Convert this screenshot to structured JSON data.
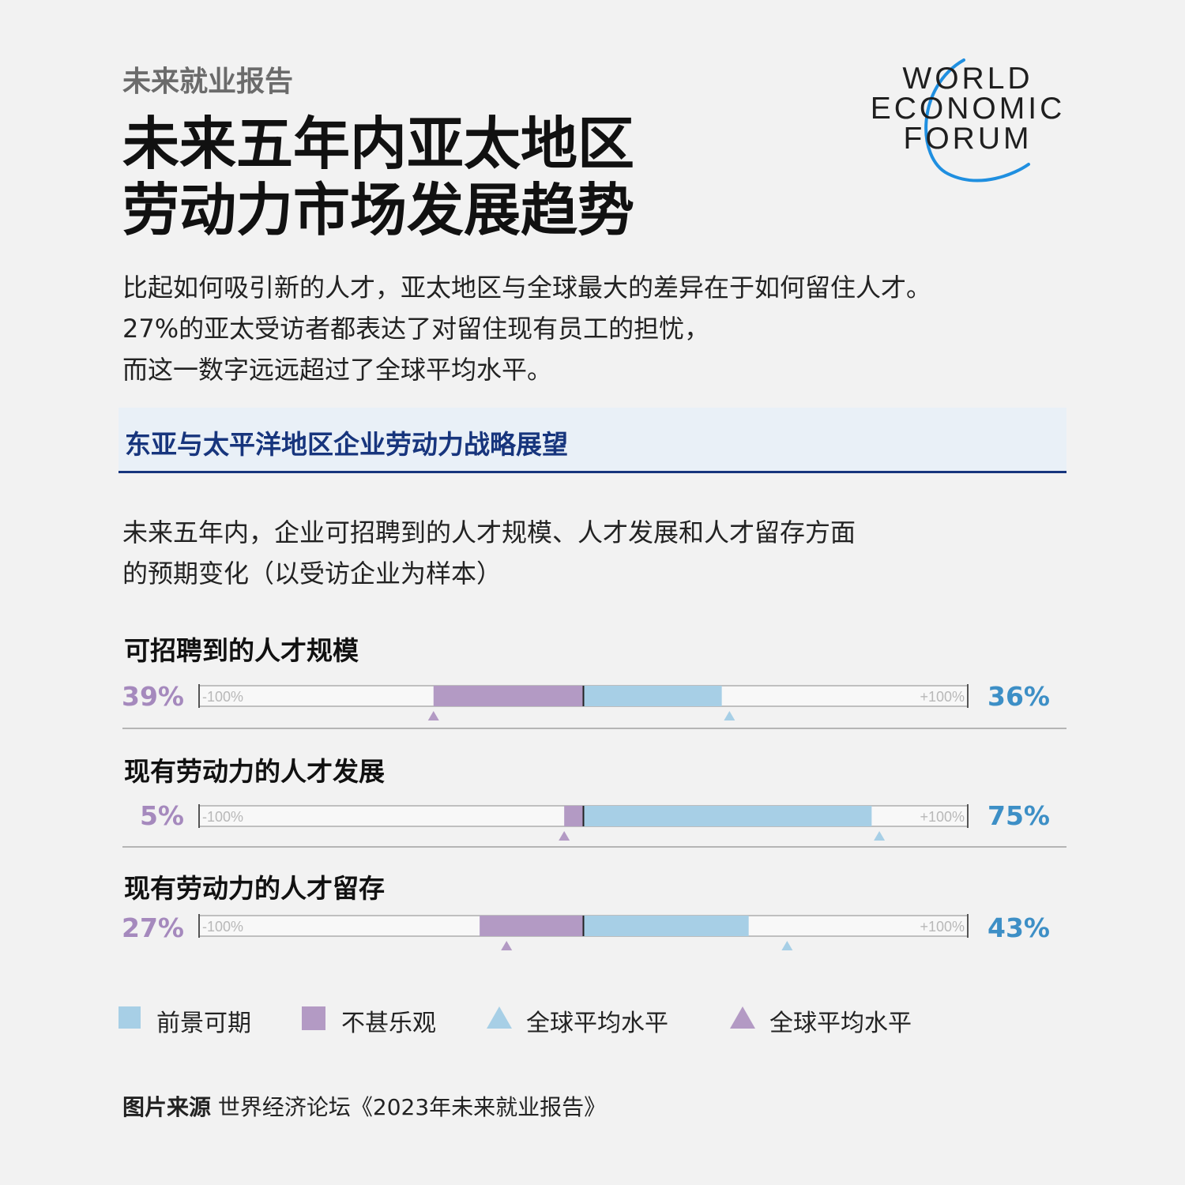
{
  "header": {
    "kicker": "未来就业报告",
    "title_lines": [
      "未来五年内亚太地区",
      "劳动力市场发展趋势"
    ],
    "intro_lines": [
      "比起如何吸引新的人才，亚太地区与全球最大的差异在于如何留住人才。",
      "27%的亚太受访者都表达了对留住现有员工的担忧，",
      "而这一数字远远超过了全球平均水平。"
    ]
  },
  "logo": {
    "lines": [
      "WORLD",
      "ECONOMIC",
      "FORUM"
    ]
  },
  "section": {
    "title": "东亚与太平洋地区企业劳动力战略展望"
  },
  "subtitle_lines": [
    "未来五年内，企业可招聘到的人才规模、人才发展和人才留存方面",
    "的预期变化（以受访企业为样本）"
  ],
  "colors": {
    "positive": "#a7cfe6",
    "negative": "#b39ac4",
    "positive_text": "#3d8fc6",
    "negative_text": "#a589bd",
    "accent": "#17357d"
  },
  "chart_data": {
    "type": "bar",
    "axis_range": [
      -100,
      100
    ],
    "axis_min_label": "-100%",
    "axis_max_label": "+100%",
    "rows": [
      {
        "label": "可招聘到的人才规模",
        "negative": 39,
        "positive": 36,
        "negative_label": "39%",
        "positive_label": "36%",
        "global_negative": 39,
        "global_positive": 38
      },
      {
        "label": "现有劳动力的人才发展",
        "negative": 5,
        "positive": 75,
        "negative_label": "5%",
        "positive_label": "75%",
        "global_negative": 5,
        "global_positive": 77
      },
      {
        "label": "现有劳动力的人才留存",
        "negative": 27,
        "positive": 43,
        "negative_label": "27%",
        "positive_label": "43%",
        "global_negative": 20,
        "global_positive": 53
      }
    ],
    "legend": [
      "前景可期",
      "不甚乐观",
      "全球平均水平",
      "全球平均水平"
    ]
  },
  "source": {
    "label": "图片来源",
    "text": "世界经济论坛《2023年未来就业报告》"
  }
}
